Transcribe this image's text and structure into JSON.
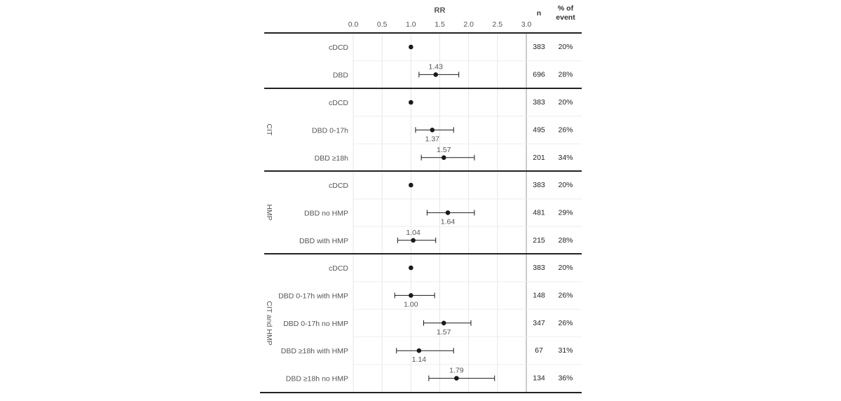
{
  "chart_data": {
    "type": "forest",
    "axis_title": "RR",
    "xlim": [
      0,
      3
    ],
    "ticks": [
      "0.0",
      "0.5",
      "1.0",
      "1.5",
      "2.0",
      "2.5",
      "3.0"
    ],
    "col_n": "n",
    "col_event": [
      "% of",
      "event"
    ],
    "groups": [
      {
        "label": "",
        "rows": [
          {
            "label": "cDCD",
            "est": 1.0,
            "n": "383",
            "event": "20%",
            "rr_label": ""
          },
          {
            "label": "DBD",
            "est": 1.43,
            "lo": 1.14,
            "hi": 1.83,
            "n": "696",
            "event": "28%",
            "rr_label": "1.43",
            "label_pos": "above"
          }
        ]
      },
      {
        "label": "CIT",
        "rows": [
          {
            "label": "cDCD",
            "est": 1.0,
            "n": "383",
            "event": "20%",
            "rr_label": ""
          },
          {
            "label": "DBD 0-17h",
            "est": 1.37,
            "lo": 1.08,
            "hi": 1.74,
            "n": "495",
            "event": "26%",
            "rr_label": "1.37",
            "label_pos": "below"
          },
          {
            "label": "DBD ≥18h",
            "est": 1.57,
            "lo": 1.18,
            "hi": 2.1,
            "n": "201",
            "event": "34%",
            "rr_label": "1.57",
            "label_pos": "above"
          }
        ]
      },
      {
        "label": "HMP",
        "rows": [
          {
            "label": "cDCD",
            "est": 1.0,
            "n": "383",
            "event": "20%",
            "rr_label": ""
          },
          {
            "label": "DBD no HMP",
            "est": 1.64,
            "lo": 1.28,
            "hi": 2.1,
            "n": "481",
            "event": "29%",
            "rr_label": "1.64",
            "label_pos": "below"
          },
          {
            "label": "DBD with HMP",
            "est": 1.04,
            "lo": 0.77,
            "hi": 1.43,
            "n": "215",
            "event": "28%",
            "rr_label": "1.04",
            "label_pos": "above"
          }
        ]
      },
      {
        "label": "CIT and HMP",
        "rows": [
          {
            "label": "cDCD",
            "est": 1.0,
            "n": "383",
            "event": "20%",
            "rr_label": ""
          },
          {
            "label": "DBD 0-17h with HMP",
            "est": 1.0,
            "lo": 0.72,
            "hi": 1.41,
            "n": "148",
            "event": "26%",
            "rr_label": "1.00",
            "label_pos": "below"
          },
          {
            "label": "DBD 0-17h no HMP",
            "est": 1.57,
            "lo": 1.22,
            "hi": 2.04,
            "n": "347",
            "event": "26%",
            "rr_label": "1.57",
            "label_pos": "below"
          },
          {
            "label": "DBD  ≥18h with HMP",
            "est": 1.14,
            "lo": 0.75,
            "hi": 1.74,
            "n": "67",
            "event": "31%",
            "rr_label": "1.14",
            "label_pos": "below"
          },
          {
            "label": "DBD  ≥18h no HMP",
            "est": 1.79,
            "lo": 1.31,
            "hi": 2.45,
            "n": "134",
            "event": "36%",
            "rr_label": "1.79",
            "label_pos": "above"
          }
        ]
      }
    ],
    "colors": {
      "point": "#1a1a1a",
      "grid": "#e6e6e6",
      "rule": "#222222",
      "text": "#555555"
    }
  }
}
